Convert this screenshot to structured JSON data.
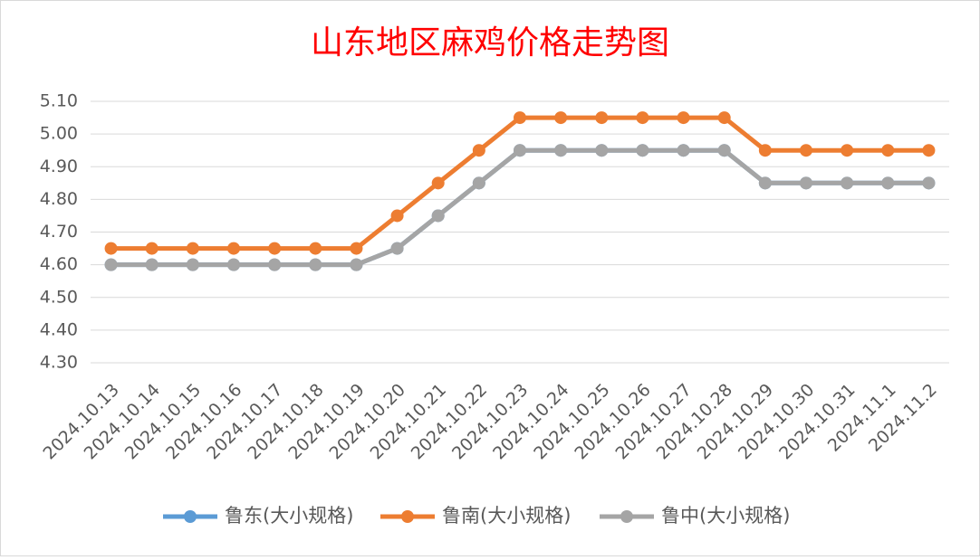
{
  "chart_data": {
    "type": "line",
    "title": "山东地区麻鸡价格走势图",
    "categories": [
      "2024.10.13",
      "2024.10.14",
      "2024.10.15",
      "2024.10.16",
      "2024.10.17",
      "2024.10.18",
      "2024.10.19",
      "2024.10.20",
      "2024.10.21",
      "2024.10.22",
      "2024.10.23",
      "2024.10.24",
      "2024.10.25",
      "2024.10.26",
      "2024.10.27",
      "2024.10.28",
      "2024.10.29",
      "2024.10.30",
      "2024.10.31",
      "2024.11.1",
      "2024.11.2"
    ],
    "series": [
      {
        "name": "鲁东(大小规格)",
        "color": "#5b9bd5",
        "values": [
          4.6,
          4.6,
          4.6,
          4.6,
          4.6,
          4.6,
          4.6,
          4.65,
          4.75,
          4.85,
          4.95,
          4.95,
          4.95,
          4.95,
          4.95,
          4.95,
          4.85,
          4.85,
          4.85,
          4.85,
          4.85
        ]
      },
      {
        "name": "鲁南(大小规格)",
        "color": "#ed7d31",
        "values": [
          4.65,
          4.65,
          4.65,
          4.65,
          4.65,
          4.65,
          4.65,
          4.75,
          4.85,
          4.95,
          5.05,
          5.05,
          5.05,
          5.05,
          5.05,
          5.05,
          4.95,
          4.95,
          4.95,
          4.95,
          4.95
        ]
      },
      {
        "name": "鲁中(大小规格)",
        "color": "#a5a5a5",
        "values": [
          4.6,
          4.6,
          4.6,
          4.6,
          4.6,
          4.6,
          4.6,
          4.65,
          4.75,
          4.85,
          4.95,
          4.95,
          4.95,
          4.95,
          4.95,
          4.95,
          4.85,
          4.85,
          4.85,
          4.85,
          4.85
        ]
      }
    ],
    "ylim": [
      4.3,
      5.1
    ],
    "yticks": [
      {
        "value": 4.3,
        "label": "4.30"
      },
      {
        "value": 4.4,
        "label": "4.40"
      },
      {
        "value": 4.5,
        "label": "4.50"
      },
      {
        "value": 4.6,
        "label": "4.60"
      },
      {
        "value": 4.7,
        "label": "4.70"
      },
      {
        "value": 4.8,
        "label": "4.80"
      },
      {
        "value": 4.9,
        "label": "4.90"
      },
      {
        "value": 5.0,
        "label": "5.00"
      },
      {
        "value": 5.1,
        "label": "5.10"
      }
    ],
    "grid": true,
    "legend": "bottom"
  }
}
